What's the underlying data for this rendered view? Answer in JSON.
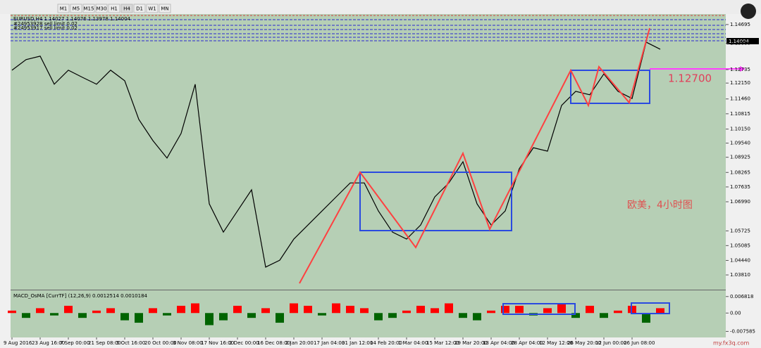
{
  "toolbar": {
    "timeframes": [
      "M1",
      "M5",
      "M15",
      "M30",
      "H1",
      "H4",
      "D1",
      "W1",
      "MN"
    ]
  },
  "header": {
    "symbol_line": "EURUSD,H4 1.14027 1.14076 1.13978 1.14004",
    "orders": [
      "#24953928 sell limit 0.02",
      "#24953917 sell limit 0.02"
    ]
  },
  "annotations": {
    "level": "1.12700",
    "caption": "欧美，4小时图",
    "current_price": "1.14004",
    "watermark": "my.fx3q.com"
  },
  "chart_data": [
    {
      "type": "line",
      "color": "#000000",
      "categories": [
        "9 Aug 2016",
        null,
        "23 Aug 16:00",
        null,
        "7 Sep 00:00",
        null,
        "21 Sep 08:00",
        null,
        "5 Oct 16:00",
        null,
        "20 Oct 00:00",
        null,
        "3 Nov 08:00",
        null,
        "17 Nov 16:00",
        null,
        "2 Dec 00:00",
        null,
        "16 Dec 08:00",
        null,
        "2 Jan 20:00",
        null,
        "17 Jan 04:00",
        null,
        "31 Jan 12:00",
        null,
        "14 Feb 20:00",
        null,
        "1 Mar 04:00",
        null,
        "15 Mar 12:00",
        null,
        "29 Mar 20:00",
        null,
        "13 Apr 04:00",
        null,
        "28 Apr 04:00",
        null,
        "12 May 12:00",
        null,
        "26 May 20:00",
        null,
        "12 Jun 00:00",
        null,
        "26 Jun 08:00",
        null,
        null
      ],
      "values": [
        1.1271,
        1.1317,
        1.1332,
        1.121,
        1.1271,
        1.124,
        1.121,
        1.1271,
        1.1225,
        1.1057,
        1.0965,
        1.0889,
        1.0996,
        1.121,
        1.069,
        1.0567,
        1.0659,
        1.0751,
        1.0415,
        1.0445,
        1.0537,
        1.0598,
        1.0659,
        1.072,
        1.0781,
        1.0781,
        1.0659,
        1.0567,
        1.0537,
        1.0598,
        1.072,
        1.0781,
        1.0873,
        1.069,
        1.0598,
        1.0659,
        1.0843,
        1.0934,
        1.0919,
        1.1118,
        1.1179,
        1.1164,
        1.1255,
        1.1179,
        1.1148,
        1.1393,
        1.1362
      ],
      "ylim": [
        1.0317,
        1.1515
      ],
      "yticks": [
        1.14695,
        {
          "value": 1.1388,
          "label": "1.13880"
        },
        1.12735,
        {
          "value": 1.1215,
          "label": "1.12150"
        },
        {
          "value": 1.1146,
          "label": "1.11460"
        },
        1.10815,
        {
          "value": 1.1015,
          "label": "1.10150"
        },
        {
          "value": 1.0954,
          "label": "1.09540"
        },
        1.08925,
        1.08265,
        1.07635,
        {
          "value": 1.0699,
          "label": "1.06990"
        },
        1.05725,
        1.05085,
        {
          "value": 1.0444,
          "label": "1.04440"
        },
        {
          "value": 1.0381,
          "label": "1.03810"
        }
      ]
    },
    {
      "type": "macd",
      "title": "MACD_OsMA [CurrTF] (12,26,9) 0.0012514 0.0010184",
      "pos_color": "#ff0000",
      "neg_color": "#006400",
      "values": [
        0.001,
        -0.002,
        0.002,
        -0.001,
        0.003,
        -0.002,
        0.001,
        0.002,
        -0.003,
        -0.004,
        0.002,
        -0.001,
        0.003,
        0.004,
        -0.005,
        -0.003,
        0.003,
        -0.002,
        0.002,
        -0.004,
        0.004,
        0.003,
        -0.001,
        0.004,
        0.003,
        0.002,
        -0.003,
        -0.002,
        0.001,
        0.003,
        0.002,
        0.004,
        -0.002,
        -0.003,
        0.001,
        0.003,
        0.003,
        -0.001,
        0.002,
        0.004,
        -0.002,
        0.003,
        -0.002,
        0.001,
        0.003,
        -0.004,
        0.002
      ],
      "ylim": [
        -0.0095,
        0.0085
      ],
      "yticks": [
        0.006818,
        {
          "value": 0,
          "label": "0.00"
        },
        -0.007585
      ]
    }
  ]
}
